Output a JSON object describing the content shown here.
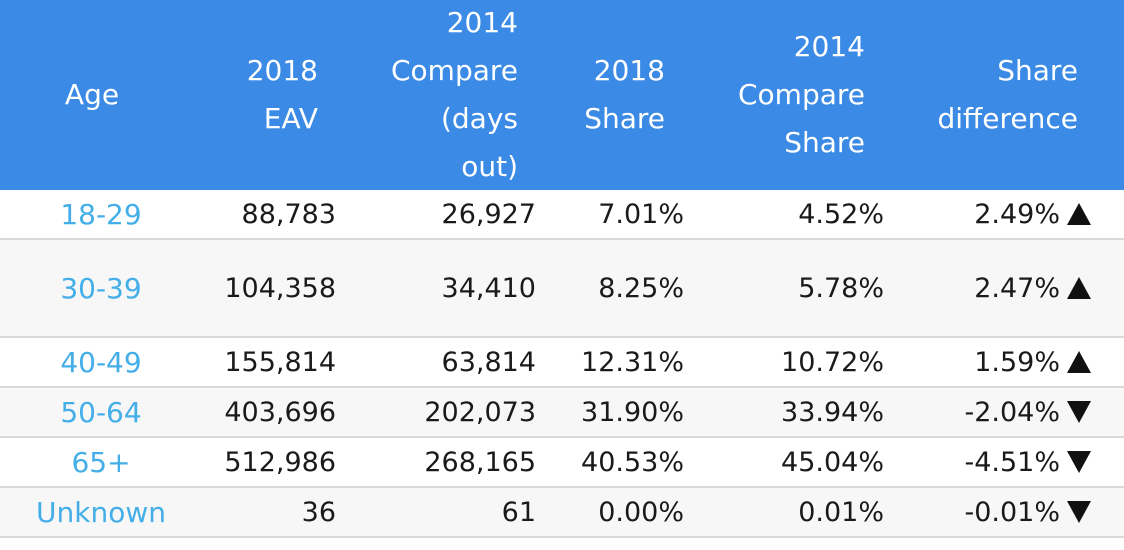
{
  "header": {
    "age": [
      "Age"
    ],
    "eav_2018": [
      "2018",
      "EAV"
    ],
    "compare_2014": [
      "2014",
      "Compare",
      "(days",
      "out)"
    ],
    "share_2018": [
      "2018",
      "Share"
    ],
    "compare_share_2014": [
      "2014",
      "Compare",
      "Share"
    ],
    "share_difference": [
      "Share",
      "difference"
    ]
  },
  "rows": [
    {
      "age": "18-29",
      "eav_2018": "88,783",
      "compare_2014": "26,927",
      "share_2018": "7.01%",
      "compare_share_2014": "4.52%",
      "share_difference": "2.49%",
      "trend": "up-icon"
    },
    {
      "age": "30-39",
      "eav_2018": "104,358",
      "compare_2014": "34,410",
      "share_2018": "8.25%",
      "compare_share_2014": "5.78%",
      "share_difference": "2.47%",
      "trend": "up-icon"
    },
    {
      "age": "40-49",
      "eav_2018": "155,814",
      "compare_2014": "63,814",
      "share_2018": "12.31%",
      "compare_share_2014": "10.72%",
      "share_difference": "1.59%",
      "trend": "up-icon"
    },
    {
      "age": "50-64",
      "eav_2018": "403,696",
      "compare_2014": "202,073",
      "share_2018": "31.90%",
      "compare_share_2014": "33.94%",
      "share_difference": "-2.04%",
      "trend": "down-icon"
    },
    {
      "age": "65+",
      "eav_2018": "512,986",
      "compare_2014": "268,165",
      "share_2018": "40.53%",
      "compare_share_2014": "45.04%",
      "share_difference": "-4.51%",
      "trend": "down-icon"
    },
    {
      "age": "Unknown",
      "eav_2018": "36",
      "compare_2014": "61",
      "share_2018": "0.00%",
      "compare_share_2014": "0.01%",
      "share_difference": "-0.01%",
      "trend": "down-icon"
    }
  ],
  "colors": {
    "header_bg": "#3b8ae6",
    "age_text": "#44aee8"
  }
}
